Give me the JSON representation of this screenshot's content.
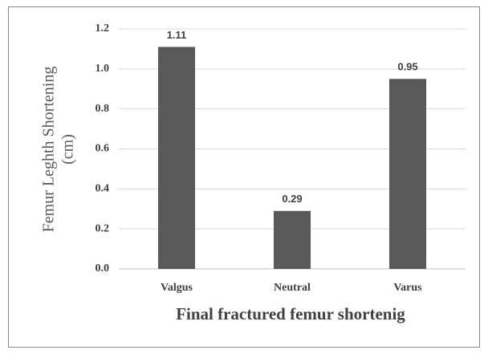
{
  "chart_data": {
    "type": "bar",
    "categories": [
      "Valgus",
      "Neutral",
      "Varus"
    ],
    "values": [
      1.11,
      0.29,
      0.95
    ],
    "color": "#595959",
    "xlabel": "Final fractured femur shortenig",
    "ylabel": [
      "Femur Leghth Shortening",
      "(cm)"
    ],
    "ylim": [
      0,
      1.2
    ],
    "yticks": [
      {
        "value": 0,
        "label": "0.0"
      },
      0.2,
      0.4,
      0.6,
      0.8,
      {
        "value": 1,
        "label": "1.0"
      },
      1.2
    ],
    "grid": true
  }
}
